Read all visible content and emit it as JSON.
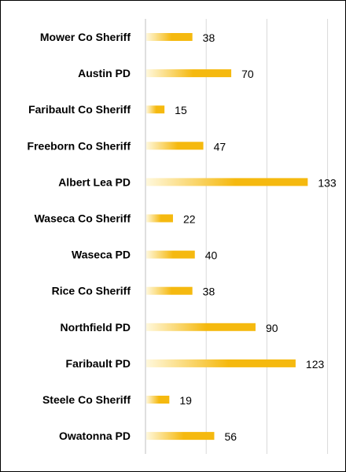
{
  "chart_data": {
    "type": "bar",
    "orientation": "horizontal",
    "categories": [
      "Mower Co Sheriff",
      "Austin PD",
      "Faribault Co Sheriff",
      "Freeborn Co Sheriff",
      "Albert Lea PD",
      "Waseca Co Sheriff",
      "Waseca PD",
      "Rice Co Sheriff",
      "Northfield PD",
      "Faribault PD",
      "Steele Co Sheriff",
      "Owatonna PD"
    ],
    "values": [
      38,
      70,
      15,
      47,
      133,
      22,
      40,
      38,
      90,
      123,
      19,
      56
    ],
    "xlim": [
      0,
      160
    ],
    "grid": true,
    "legend": "none",
    "bar_color": "#F5B90F",
    "bar_gradient_start": "#FFF8DC"
  }
}
